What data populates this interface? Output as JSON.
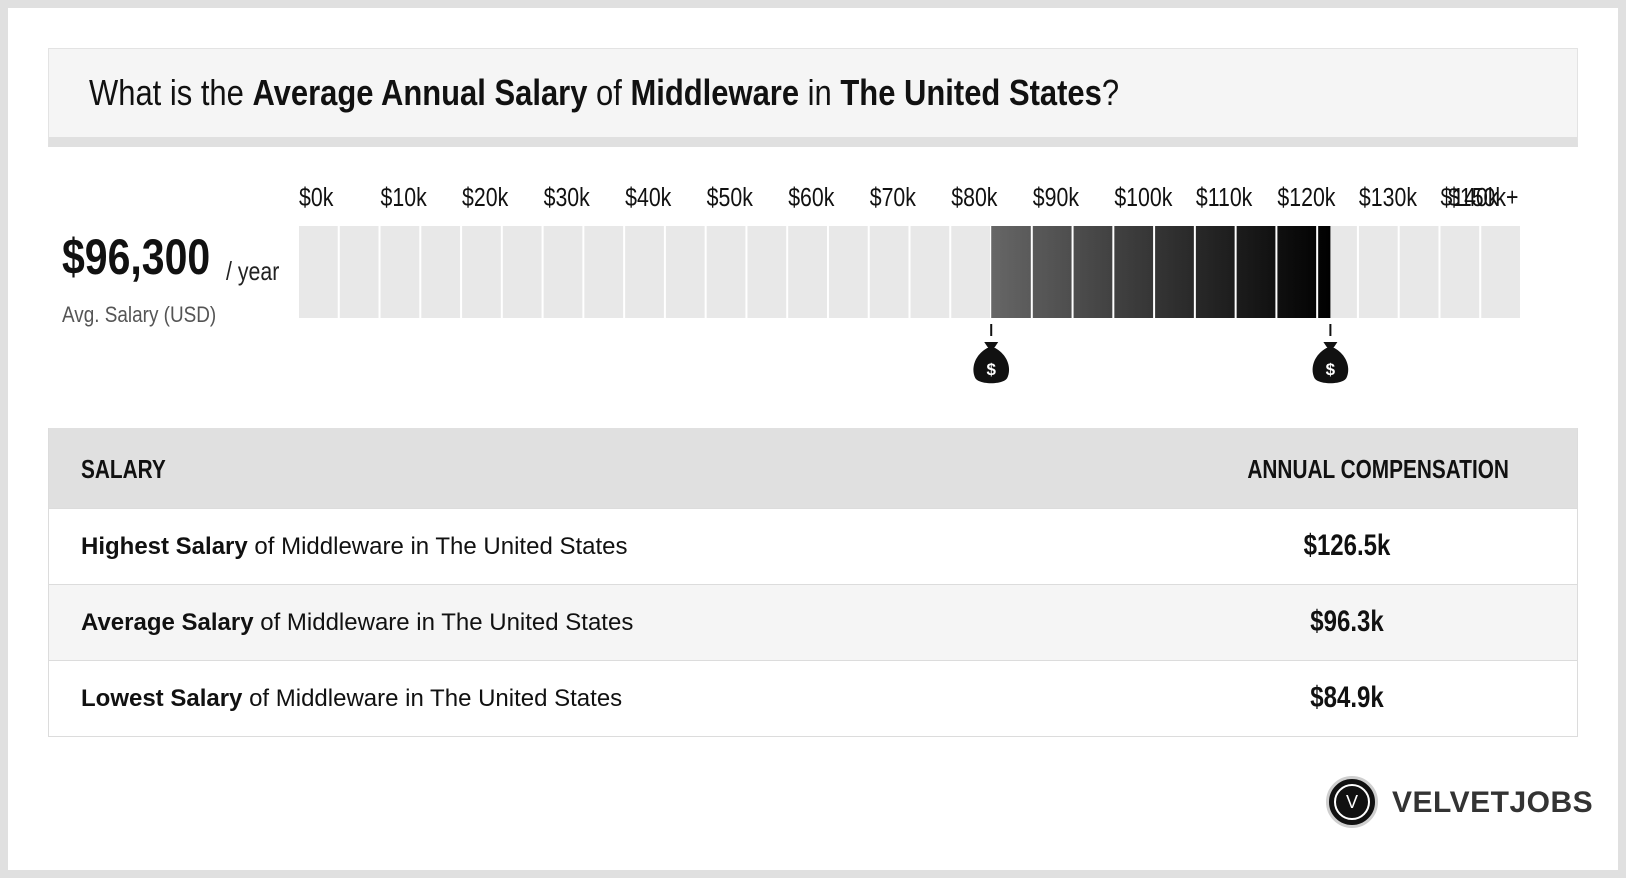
{
  "title": {
    "p1": "What is the ",
    "b1": "Average Annual Salary",
    "p2": " of ",
    "b2": "Middleware",
    "p3": " in ",
    "b3": "The United States",
    "p4": "?"
  },
  "average": {
    "value": "$96,300",
    "unit": "/ year",
    "label": "Avg. Salary (USD)"
  },
  "chart_data": {
    "type": "bar",
    "tick_labels": [
      "$0k",
      "$10k",
      "$20k",
      "$30k",
      "$40k",
      "$50k",
      "$60k",
      "$70k",
      "$80k",
      "$90k",
      "$100k",
      "$110k",
      "$120k",
      "$130k",
      "$140k",
      "$150k+"
    ],
    "axis_range": [
      0,
      150
    ],
    "range_low": 84.9,
    "range_high": 126.5,
    "average": 96.3,
    "segment_count": 30,
    "colors": {
      "empty": "#e8e8e8",
      "range_light": "#666666",
      "range_dark": "#000000"
    }
  },
  "table": {
    "header_left": "SALARY",
    "header_right": "ANNUAL COMPENSATION",
    "rows": [
      {
        "bold": "Highest Salary",
        "rest": " of Middleware in The United States",
        "value": "$126.5k"
      },
      {
        "bold": "Average Salary",
        "rest": " of Middleware in The United States",
        "value": "$96.3k"
      },
      {
        "bold": "Lowest Salary",
        "rest": " of Middleware in The United States",
        "value": "$84.9k"
      }
    ]
  },
  "logo": {
    "letter": "V",
    "text": "VELVETJOBS"
  },
  "icons": {
    "marker": "money-bag-icon"
  }
}
